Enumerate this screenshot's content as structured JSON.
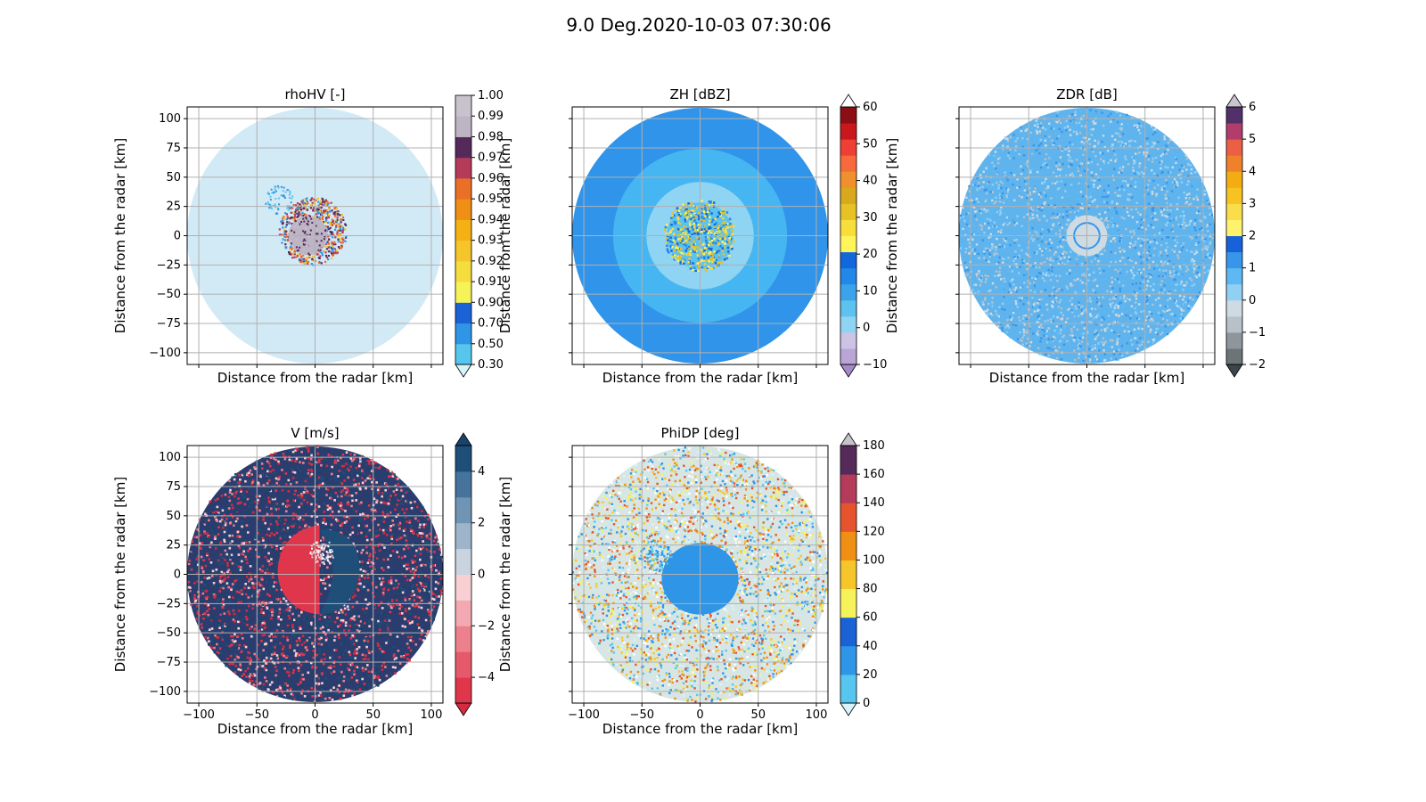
{
  "figure_title": "9.0 Deg.2020-10-03 07:30:06",
  "chart_data": [
    {
      "type": "heatmap",
      "title": "rhoHV [-]",
      "xlabel": "Distance from the radar [km]",
      "ylabel": "Distance from the radar [km]",
      "xlim": [
        -110,
        110
      ],
      "ylim": [
        -110,
        110
      ],
      "yticks": [
        -100,
        -75,
        -50,
        -25,
        0,
        25,
        50,
        75,
        100
      ],
      "xticks": [
        -100,
        -50,
        0,
        50,
        100
      ],
      "x_ticklabels_shown": false,
      "grid": true,
      "colorbar": {
        "labels": [
          "0.30",
          "0.50",
          "0.70",
          "0.90",
          "0.91",
          "0.92",
          "0.93",
          "0.94",
          "0.95",
          "0.96",
          "0.97",
          "0.98",
          "0.99",
          "1.00"
        ],
        "colors": [
          "#56c6ee",
          "#2f95e6",
          "#1b62d6",
          "#f6f35a",
          "#f6dd3e",
          "#f5c52a",
          "#f5b013",
          "#ef8f14",
          "#ea7028",
          "#b53b5b",
          "#552a5a",
          "#bdb4c4",
          "#c8c2cd"
        ],
        "extend_min": true,
        "extend_max": false,
        "min_color": "#d9f3fb"
      },
      "background_color": "#d2eaf6"
    },
    {
      "type": "heatmap",
      "title": "ZH [dBZ]",
      "xlabel": "Distance from the radar [km]",
      "ylabel": "Distance from the radar [km]",
      "xlim": [
        -110,
        110
      ],
      "ylim": [
        -110,
        110
      ],
      "xticks": [
        -100,
        -50,
        0,
        50,
        100
      ],
      "yticks": [
        -100,
        -75,
        -50,
        -25,
        0,
        25,
        50,
        75,
        100
      ],
      "x_ticklabels_shown": false,
      "y_ticklabels_shown": false,
      "grid": true,
      "colorbar": {
        "labels": [
          "−10",
          "0",
          "10",
          "20",
          "30",
          "40",
          "50",
          "60"
        ],
        "values": [
          -10,
          0,
          10,
          20,
          30,
          40,
          50,
          60
        ],
        "colors": [
          "#b9a5d6",
          "#cdc3e4",
          "#8fd4f3",
          "#5ec2ef",
          "#3aa3ec",
          "#2187e8",
          "#1168dc",
          "#fff45a",
          "#f7de3a",
          "#e7c226",
          "#d8a91c",
          "#ef8f2e",
          "#f66a3c",
          "#ef3f34",
          "#c8181c",
          "#8a0e14"
        ],
        "extend_min": true,
        "extend_max": true,
        "min_color": "#a48bc8",
        "max_color": "#ffffff"
      },
      "background_color": "#2f94ea"
    },
    {
      "type": "heatmap",
      "title": "ZDR [dB]",
      "xlabel": "Distance from the radar [km]",
      "ylabel": "Distance from the radar [km]",
      "xlim": [
        -110,
        110
      ],
      "ylim": [
        -110,
        110
      ],
      "xticks": [
        -100,
        -50,
        0,
        50,
        100
      ],
      "yticks": [
        -100,
        -75,
        -50,
        -25,
        0,
        25,
        50,
        75,
        100
      ],
      "x_ticklabels_shown": false,
      "y_ticklabels_shown": false,
      "grid": true,
      "colorbar": {
        "labels": [
          "−2",
          "−1",
          "0",
          "1",
          "2",
          "3",
          "4",
          "5",
          "6"
        ],
        "values": [
          -2,
          -1,
          0,
          1,
          2,
          3,
          4,
          5,
          6
        ],
        "colors": [
          "#6d7478",
          "#8e969b",
          "#b7c2c8",
          "#cfdbe2",
          "#90d0f4",
          "#5eb8f1",
          "#3796ea",
          "#1762d9",
          "#fff36e",
          "#f9dd4a",
          "#f6c322",
          "#f3ad12",
          "#ef812a",
          "#eb6045",
          "#b23d6a",
          "#52306a"
        ],
        "extend_min": true,
        "extend_max": true,
        "min_color": "#3f4548",
        "max_color": "#c9c4d3"
      },
      "background_color": "#5fb4ee"
    },
    {
      "type": "heatmap",
      "title": "V [m/s]",
      "xlabel": "Distance from the radar [km]",
      "ylabel": "Distance from the radar [km]",
      "xlim": [
        -110,
        110
      ],
      "ylim": [
        -110,
        110
      ],
      "xticks": [
        -100,
        -50,
        0,
        50,
        100
      ],
      "yticks": [
        -100,
        -75,
        -50,
        -25,
        0,
        25,
        50,
        75,
        100
      ],
      "grid": true,
      "colorbar": {
        "labels": [
          "−4",
          "−2",
          "0",
          "2",
          "4"
        ],
        "values": [
          -4,
          -2,
          0,
          2,
          4
        ],
        "vmin": -5,
        "vmax": 5,
        "colors": [
          "#e0364b",
          "#e6596a",
          "#ec808d",
          "#f3a9b1",
          "#f8d0d4",
          "#c9d4e0",
          "#9db4ca",
          "#7094b4",
          "#45739b",
          "#1f4e78"
        ],
        "extend_min": true,
        "extend_max": true,
        "min_color": "#d42b40",
        "max_color": "#17446b"
      },
      "background_color": "#2a3d6e"
    },
    {
      "type": "heatmap",
      "title": "PhiDP [deg]",
      "xlabel": "Distance from the radar [km]",
      "ylabel": "Distance from the radar [km]",
      "xlim": [
        -110,
        110
      ],
      "ylim": [
        -110,
        110
      ],
      "xticks": [
        -100,
        -50,
        0,
        50,
        100
      ],
      "yticks": [
        -100,
        -75,
        -50,
        -25,
        0,
        25,
        50,
        75,
        100
      ],
      "y_ticklabels_shown": false,
      "grid": true,
      "colorbar": {
        "labels": [
          "0",
          "20",
          "40",
          "60",
          "80",
          "100",
          "120",
          "140",
          "160",
          "180"
        ],
        "values": [
          0,
          20,
          40,
          60,
          80,
          100,
          120,
          140,
          160,
          180
        ],
        "colors": [
          "#56c6ee",
          "#2f95e6",
          "#1b62d6",
          "#f6f35a",
          "#f5c52a",
          "#ef8f14",
          "#e6542e",
          "#b53b5b",
          "#552a5a"
        ],
        "extend_min": true,
        "extend_max": true,
        "min_color": "#d9f3fb",
        "max_color": "#c8c2cd"
      },
      "background_color": "#d7e6e4"
    }
  ]
}
